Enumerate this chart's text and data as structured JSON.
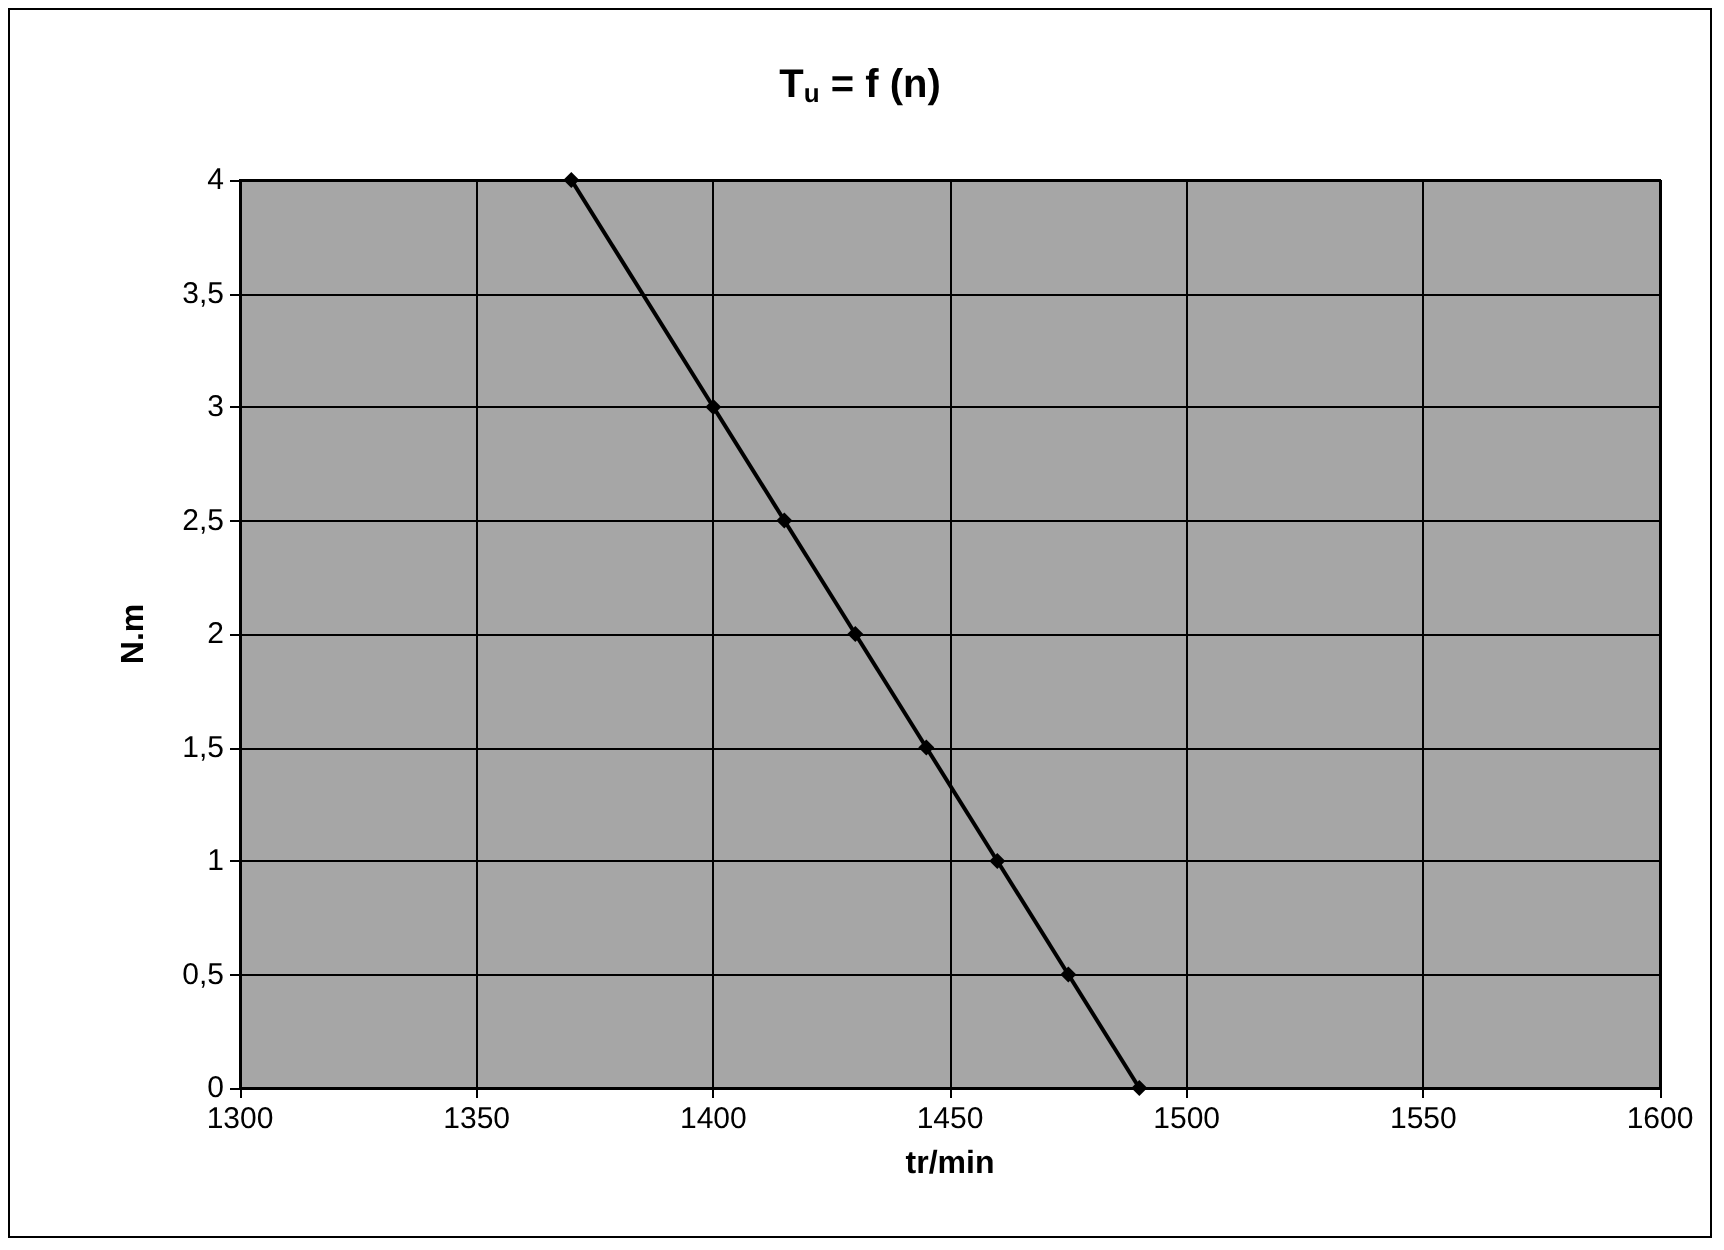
{
  "chart_data": {
    "type": "line",
    "title": "T$_{u}$ = f (n)",
    "xlabel": "tr/min",
    "ylabel": "N.m",
    "x": [
      1370,
      1400,
      1415,
      1430,
      1445,
      1460,
      1475,
      1490
    ],
    "series": [
      {
        "color": "#000000",
        "values": [
          4,
          3,
          2.5,
          2,
          1.5,
          1,
          0.5,
          0
        ]
      }
    ],
    "xlim": [
      1300,
      1600
    ],
    "xticks": [
      1300,
      1350,
      1400,
      1450,
      1500,
      1550,
      1600
    ],
    "ylim": [
      0,
      4
    ],
    "yticks": [
      0,
      {
        "value": 0.5,
        "label": "0,5"
      },
      1,
      {
        "value": 1.5,
        "label": "1,5"
      },
      2,
      {
        "value": 2.5,
        "label": "2,5"
      },
      3,
      {
        "value": 3.5,
        "label": "3,5"
      },
      4
    ],
    "grid": true,
    "marker": "diamond",
    "line_style": "solid"
  }
}
